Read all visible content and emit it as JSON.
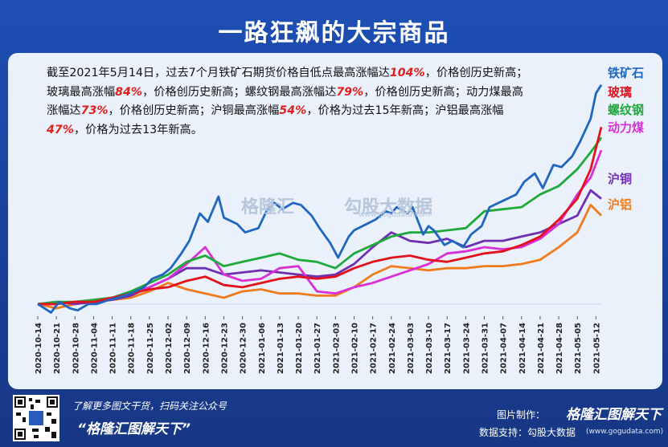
{
  "header": {
    "title": "一路狂飙的大宗商品"
  },
  "caption": {
    "p1": "截至2021年5月14日，过去7个月铁矿石期货价格自低点最高涨幅达",
    "v1": "104%",
    "p2": "，价格创历史新高；玻璃最高涨幅",
    "v2": "84%",
    "p3": "，价格创历史新高；螺纹钢最高涨幅达",
    "v3": "79%",
    "p4": "，价格创历史新高；动力煤最高涨幅达",
    "v4": "73%",
    "p5": "，价格创历史新高；沪铜最高涨幅",
    "v5": "54%",
    "p6": "，价格为过去15年新高；沪铝最高涨幅",
    "v6": "47%",
    "p7": "，价格为过去13年新高。"
  },
  "watermark": {
    "left": "格隆汇",
    "right": "勾股大数据",
    "url": "www.gogudata.com"
  },
  "footer": {
    "promo": "了解更多图文干货，扫码关注公众号",
    "slogan": "“格隆汇图解天下”",
    "maker_label": "图片制作：",
    "maker_brand": "格隆汇图解天下",
    "source": "数据支持：勾股大数据",
    "url": "(www.gogudata.com)"
  },
  "colors": {
    "iron_ore": "#1f66c1",
    "glass": "#e3111b",
    "rebar": "#1ea93b",
    "thermal_coal": "#d92fd6",
    "copper": "#6e2fb0",
    "aluminum": "#f07b1d",
    "background": "#1d4fb3",
    "panel": "#eaf1fa"
  },
  "chart_data": {
    "type": "line",
    "title": "一路狂飙的大宗商品",
    "x_tick_labels": [
      "2020-10-14",
      "2020-10-21",
      "2020-10-28",
      "2020-11-04",
      "2020-11-11",
      "2020-11-18",
      "2020-11-25",
      "2020-12-02",
      "2020-12-09",
      "2020-12-16",
      "2020-12-23",
      "2020-12-30",
      "2021-01-06",
      "2021-01-13",
      "2021-01-20",
      "2021-01-27",
      "2021-02-03",
      "2021-02-10",
      "2021-02-17",
      "2021-02-24",
      "2021-03-03",
      "2021-03-10",
      "2021-03-17",
      "2021-03-24",
      "2021-03-31",
      "2021-04-07",
      "2021-04-14",
      "2021-04-21",
      "2021-04-28",
      "2021-05-05",
      "2021-05-12"
    ],
    "x_range": [
      "2020-10-14",
      "2021-05-14"
    ],
    "y_unit": "change since 2020-10-14 (approx., %)",
    "y_range": [
      -5,
      110
    ],
    "grid": false,
    "legend_position": "right, at line ends",
    "series": [
      {
        "name": "铁矿石",
        "color": "#1f66c1",
        "points": [
          [
            "2020-10-14",
            0
          ],
          [
            "2020-10-19",
            -4
          ],
          [
            "2020-10-22",
            1
          ],
          [
            "2020-10-26",
            -2
          ],
          [
            "2020-10-29",
            -3
          ],
          [
            "2020-11-02",
            0
          ],
          [
            "2020-11-05",
            0
          ],
          [
            "2020-11-10",
            2
          ],
          [
            "2020-11-13",
            3
          ],
          [
            "2020-11-18",
            5
          ],
          [
            "2020-11-23",
            8
          ],
          [
            "2020-11-26",
            12
          ],
          [
            "2020-11-30",
            14
          ],
          [
            "2020-12-03",
            17
          ],
          [
            "2020-12-07",
            24
          ],
          [
            "2020-12-10",
            30
          ],
          [
            "2020-12-14",
            43
          ],
          [
            "2020-12-17",
            39
          ],
          [
            "2020-12-21",
            51
          ],
          [
            "2020-12-23",
            41
          ],
          [
            "2020-12-28",
            38
          ],
          [
            "2020-12-31",
            34
          ],
          [
            "2021-01-05",
            36
          ],
          [
            "2021-01-08",
            44
          ],
          [
            "2021-01-11",
            48
          ],
          [
            "2021-01-14",
            45
          ],
          [
            "2021-01-18",
            48
          ],
          [
            "2021-01-21",
            47
          ],
          [
            "2021-01-25",
            42
          ],
          [
            "2021-01-28",
            36
          ],
          [
            "2021-02-01",
            29
          ],
          [
            "2021-02-04",
            22
          ],
          [
            "2021-02-08",
            32
          ],
          [
            "2021-02-10",
            35
          ],
          [
            "2021-02-18",
            40
          ],
          [
            "2021-02-22",
            44
          ],
          [
            "2021-02-24",
            43
          ],
          [
            "2021-02-26",
            46
          ],
          [
            "2021-03-02",
            43
          ],
          [
            "2021-03-04",
            46
          ],
          [
            "2021-03-08",
            33
          ],
          [
            "2021-03-10",
            37
          ],
          [
            "2021-03-12",
            35
          ],
          [
            "2021-03-16",
            28
          ],
          [
            "2021-03-19",
            30
          ],
          [
            "2021-03-23",
            27
          ],
          [
            "2021-03-26",
            33
          ],
          [
            "2021-03-30",
            37
          ],
          [
            "2021-04-02",
            46
          ],
          [
            "2021-04-07",
            49
          ],
          [
            "2021-04-12",
            52
          ],
          [
            "2021-04-15",
            58
          ],
          [
            "2021-04-19",
            62
          ],
          [
            "2021-04-22",
            55
          ],
          [
            "2021-04-26",
            66
          ],
          [
            "2021-04-29",
            65
          ],
          [
            "2021-05-03",
            70
          ],
          [
            "2021-05-06",
            77
          ],
          [
            "2021-05-10",
            88
          ],
          [
            "2021-05-12",
            100
          ],
          [
            "2021-05-14",
            104
          ]
        ]
      },
      {
        "name": "玻璃",
        "color": "#e3111b",
        "points": [
          [
            "2020-10-14",
            0
          ],
          [
            "2020-10-21",
            0
          ],
          [
            "2020-10-28",
            1
          ],
          [
            "2020-11-04",
            1
          ],
          [
            "2020-11-11",
            3
          ],
          [
            "2020-11-18",
            5
          ],
          [
            "2020-11-25",
            7
          ],
          [
            "2020-12-02",
            8
          ],
          [
            "2020-12-09",
            11
          ],
          [
            "2020-12-16",
            13
          ],
          [
            "2020-12-23",
            9
          ],
          [
            "2020-12-30",
            8
          ],
          [
            "2021-01-06",
            10
          ],
          [
            "2021-01-13",
            12
          ],
          [
            "2021-01-20",
            13
          ],
          [
            "2021-01-27",
            12
          ],
          [
            "2021-02-03",
            13
          ],
          [
            "2021-02-10",
            17
          ],
          [
            "2021-02-17",
            20
          ],
          [
            "2021-02-24",
            22
          ],
          [
            "2021-03-03",
            23
          ],
          [
            "2021-03-10",
            21
          ],
          [
            "2021-03-17",
            20
          ],
          [
            "2021-03-24",
            22
          ],
          [
            "2021-03-31",
            24
          ],
          [
            "2021-04-07",
            25
          ],
          [
            "2021-04-14",
            28
          ],
          [
            "2021-04-21",
            32
          ],
          [
            "2021-04-28",
            40
          ],
          [
            "2021-05-05",
            50
          ],
          [
            "2021-05-10",
            64
          ],
          [
            "2021-05-14",
            84
          ]
        ]
      },
      {
        "name": "螺纹钢",
        "color": "#1ea93b",
        "points": [
          [
            "2020-10-14",
            0
          ],
          [
            "2020-10-21",
            1
          ],
          [
            "2020-10-28",
            1
          ],
          [
            "2020-11-04",
            2
          ],
          [
            "2020-11-11",
            3
          ],
          [
            "2020-11-18",
            6
          ],
          [
            "2020-11-25",
            10
          ],
          [
            "2020-12-02",
            14
          ],
          [
            "2020-12-09",
            20
          ],
          [
            "2020-12-16",
            23
          ],
          [
            "2020-12-23",
            18
          ],
          [
            "2020-12-30",
            20
          ],
          [
            "2021-01-06",
            22
          ],
          [
            "2021-01-13",
            24
          ],
          [
            "2021-01-20",
            21
          ],
          [
            "2021-01-27",
            20
          ],
          [
            "2021-02-03",
            17
          ],
          [
            "2021-02-10",
            24
          ],
          [
            "2021-02-17",
            28
          ],
          [
            "2021-02-24",
            32
          ],
          [
            "2021-03-03",
            34
          ],
          [
            "2021-03-10",
            34
          ],
          [
            "2021-03-17",
            35
          ],
          [
            "2021-03-24",
            36
          ],
          [
            "2021-03-31",
            44
          ],
          [
            "2021-04-07",
            45
          ],
          [
            "2021-04-14",
            46
          ],
          [
            "2021-04-21",
            52
          ],
          [
            "2021-04-28",
            56
          ],
          [
            "2021-05-05",
            64
          ],
          [
            "2021-05-10",
            72
          ],
          [
            "2021-05-14",
            79
          ]
        ]
      },
      {
        "name": "动力煤",
        "color": "#d92fd6",
        "points": [
          [
            "2020-10-14",
            0
          ],
          [
            "2020-10-21",
            0
          ],
          [
            "2020-10-28",
            1
          ],
          [
            "2020-11-04",
            2
          ],
          [
            "2020-11-11",
            3
          ],
          [
            "2020-11-18",
            5
          ],
          [
            "2020-11-25",
            8
          ],
          [
            "2020-12-02",
            12
          ],
          [
            "2020-12-09",
            19
          ],
          [
            "2020-12-16",
            27
          ],
          [
            "2020-12-23",
            14
          ],
          [
            "2020-12-30",
            11
          ],
          [
            "2021-01-06",
            12
          ],
          [
            "2021-01-13",
            17
          ],
          [
            "2021-01-20",
            18
          ],
          [
            "2021-01-27",
            6
          ],
          [
            "2021-02-03",
            5
          ],
          [
            "2021-02-10",
            8
          ],
          [
            "2021-02-17",
            10
          ],
          [
            "2021-02-24",
            13
          ],
          [
            "2021-03-03",
            16
          ],
          [
            "2021-03-10",
            19
          ],
          [
            "2021-03-17",
            24
          ],
          [
            "2021-03-24",
            25
          ],
          [
            "2021-03-31",
            27
          ],
          [
            "2021-04-07",
            26
          ],
          [
            "2021-04-14",
            27
          ],
          [
            "2021-04-21",
            31
          ],
          [
            "2021-04-28",
            38
          ],
          [
            "2021-05-05",
            52
          ],
          [
            "2021-05-10",
            60
          ],
          [
            "2021-05-14",
            73
          ]
        ]
      },
      {
        "name": "沪铜",
        "color": "#6e2fb0",
        "points": [
          [
            "2020-10-14",
            0
          ],
          [
            "2020-10-21",
            1
          ],
          [
            "2020-10-28",
            0
          ],
          [
            "2020-11-04",
            1
          ],
          [
            "2020-11-11",
            2
          ],
          [
            "2020-11-18",
            4
          ],
          [
            "2020-11-25",
            8
          ],
          [
            "2020-12-02",
            12
          ],
          [
            "2020-12-09",
            17
          ],
          [
            "2020-12-16",
            17
          ],
          [
            "2020-12-23",
            14
          ],
          [
            "2020-12-30",
            15
          ],
          [
            "2021-01-06",
            16
          ],
          [
            "2021-01-13",
            15
          ],
          [
            "2021-01-20",
            14
          ],
          [
            "2021-01-27",
            13
          ],
          [
            "2021-02-03",
            14
          ],
          [
            "2021-02-10",
            19
          ],
          [
            "2021-02-17",
            27
          ],
          [
            "2021-02-24",
            34
          ],
          [
            "2021-03-03",
            30
          ],
          [
            "2021-03-10",
            29
          ],
          [
            "2021-03-17",
            31
          ],
          [
            "2021-03-24",
            27
          ],
          [
            "2021-03-31",
            30
          ],
          [
            "2021-04-07",
            30
          ],
          [
            "2021-04-14",
            32
          ],
          [
            "2021-04-21",
            34
          ],
          [
            "2021-04-28",
            38
          ],
          [
            "2021-05-05",
            42
          ],
          [
            "2021-05-10",
            54
          ],
          [
            "2021-05-14",
            50
          ]
        ]
      },
      {
        "name": "沪铝",
        "color": "#f07b1d",
        "points": [
          [
            "2020-10-14",
            0
          ],
          [
            "2020-10-21",
            -2
          ],
          [
            "2020-10-28",
            0
          ],
          [
            "2020-11-04",
            1
          ],
          [
            "2020-11-11",
            2
          ],
          [
            "2020-11-18",
            3
          ],
          [
            "2020-11-25",
            6
          ],
          [
            "2020-12-02",
            10
          ],
          [
            "2020-12-09",
            7
          ],
          [
            "2020-12-16",
            5
          ],
          [
            "2020-12-23",
            3
          ],
          [
            "2020-12-30",
            6
          ],
          [
            "2021-01-06",
            7
          ],
          [
            "2021-01-13",
            5
          ],
          [
            "2021-01-20",
            5
          ],
          [
            "2021-01-27",
            4
          ],
          [
            "2021-02-03",
            4
          ],
          [
            "2021-02-10",
            8
          ],
          [
            "2021-02-17",
            14
          ],
          [
            "2021-02-24",
            18
          ],
          [
            "2021-03-03",
            17
          ],
          [
            "2021-03-10",
            16
          ],
          [
            "2021-03-17",
            17
          ],
          [
            "2021-03-24",
            17
          ],
          [
            "2021-03-31",
            18
          ],
          [
            "2021-04-07",
            18
          ],
          [
            "2021-04-14",
            19
          ],
          [
            "2021-04-21",
            21
          ],
          [
            "2021-04-28",
            27
          ],
          [
            "2021-05-05",
            34
          ],
          [
            "2021-05-10",
            47
          ],
          [
            "2021-05-14",
            42
          ]
        ]
      }
    ]
  }
}
